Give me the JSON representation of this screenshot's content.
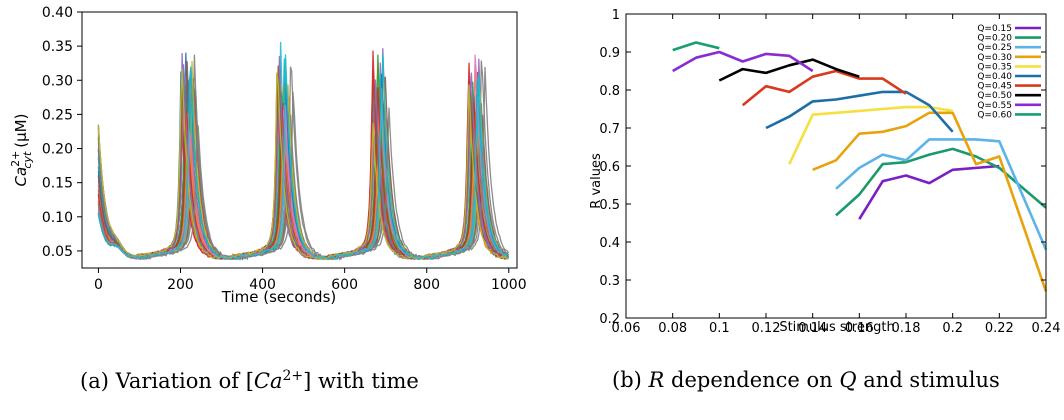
{
  "chart_data": [
    {
      "type": "line",
      "xlabel": "Time (seconds)",
      "ylabel_base": "Ca",
      "ylabel_sup": "2+",
      "ylabel_sub": "cyt",
      "ylabel_unit": "(μM)",
      "xlim": [
        -40,
        1020
      ],
      "ylim": [
        0.025,
        0.4
      ],
      "xticks": [
        0,
        200,
        400,
        600,
        800,
        1000
      ],
      "xtick_labels": [
        "0",
        "200",
        "400",
        "600",
        "800",
        "1000"
      ],
      "yticks": [
        0.05,
        0.1,
        0.15,
        0.2,
        0.25,
        0.3,
        0.35,
        0.4
      ],
      "ytick_labels": [
        "0.05",
        "0.10",
        "0.15",
        "0.20",
        "0.25",
        "0.30",
        "0.35",
        "0.40"
      ],
      "grid": false,
      "series_count": 40,
      "spike_times": [
        222,
        455,
        688,
        922
      ],
      "spike_peak_range": [
        0.26,
        0.38
      ],
      "baseline": 0.04,
      "initial_peak": 0.24,
      "colors": [
        "#1f77b4",
        "#ff7f0e",
        "#2ca02c",
        "#d62728",
        "#9467bd",
        "#8c564b",
        "#e377c2",
        "#7f7f7f",
        "#bcbd22",
        "#17becf"
      ],
      "caption_prefix": "(a) Variation of [",
      "caption_ca": "Ca",
      "caption_sup": "2+",
      "caption_suffix": "] with time"
    },
    {
      "type": "line",
      "xlabel": "Stimulus strength",
      "ylabel": "R values",
      "xlim": [
        0.06,
        0.24
      ],
      "ylim": [
        0.2,
        1.0
      ],
      "xticks": [
        0.06,
        0.08,
        0.1,
        0.12,
        0.14,
        0.16,
        0.18,
        0.2,
        0.22,
        0.24
      ],
      "xtick_labels": [
        "0.06",
        "0.08",
        "0.1",
        "0.12",
        "0.14",
        "0.16",
        "0.18",
        "0.2",
        "0.22",
        "0.24"
      ],
      "yticks": [
        0.2,
        0.3,
        0.4,
        0.5,
        0.6,
        0.7,
        0.8,
        0.9,
        1.0
      ],
      "ytick_labels": [
        "0.2",
        "0.3",
        "0.4",
        "0.5",
        "0.6",
        "0.7",
        "0.8",
        "0.9",
        "1"
      ],
      "grid": false,
      "legend_position": "top-right",
      "series": [
        {
          "name": "Q=0.15",
          "color": "#7b1fc4",
          "x": [
            0.16,
            0.17,
            0.18,
            0.19,
            0.2,
            0.22
          ],
          "y": [
            0.46,
            0.56,
            0.575,
            0.555,
            0.59,
            0.6
          ]
        },
        {
          "name": "Q=0.20",
          "color": "#1a9a6a",
          "x": [
            0.15,
            0.16,
            0.17,
            0.18,
            0.19,
            0.2,
            0.21,
            0.22,
            0.24
          ],
          "y": [
            0.47,
            0.525,
            0.605,
            0.61,
            0.63,
            0.645,
            0.625,
            0.595,
            0.49
          ]
        },
        {
          "name": "Q=0.25",
          "color": "#5ab4e8",
          "x": [
            0.15,
            0.16,
            0.17,
            0.18,
            0.19,
            0.2,
            0.21,
            0.22,
            0.24
          ],
          "y": [
            0.54,
            0.595,
            0.63,
            0.615,
            0.67,
            0.67,
            0.67,
            0.665,
            0.38
          ]
        },
        {
          "name": "Q=0.30",
          "color": "#e8a20c",
          "x": [
            0.14,
            0.15,
            0.16,
            0.17,
            0.18,
            0.19,
            0.2,
            0.21,
            0.22,
            0.24
          ],
          "y": [
            0.59,
            0.615,
            0.685,
            0.69,
            0.705,
            0.74,
            0.74,
            0.605,
            0.625,
            0.27
          ]
        },
        {
          "name": "Q=0.35",
          "color": "#f5e040",
          "x": [
            0.13,
            0.14,
            0.15,
            0.16,
            0.17,
            0.18,
            0.19,
            0.2
          ],
          "y": [
            0.605,
            0.735,
            0.74,
            0.745,
            0.75,
            0.755,
            0.755,
            0.745
          ]
        },
        {
          "name": "Q=0.40",
          "color": "#1d6ea8",
          "x": [
            0.12,
            0.13,
            0.14,
            0.15,
            0.16,
            0.17,
            0.18,
            0.19,
            0.2
          ],
          "y": [
            0.7,
            0.73,
            0.77,
            0.775,
            0.785,
            0.795,
            0.795,
            0.76,
            0.69
          ]
        },
        {
          "name": "Q=0.45",
          "color": "#d93a1e",
          "x": [
            0.11,
            0.12,
            0.13,
            0.14,
            0.15,
            0.16,
            0.17,
            0.18
          ],
          "y": [
            0.76,
            0.81,
            0.795,
            0.835,
            0.85,
            0.83,
            0.83,
            0.79
          ]
        },
        {
          "name": "Q=0.50",
          "color": "#000000",
          "x": [
            0.1,
            0.11,
            0.12,
            0.13,
            0.14,
            0.15,
            0.16
          ],
          "y": [
            0.825,
            0.855,
            0.845,
            0.865,
            0.88,
            0.855,
            0.835
          ]
        },
        {
          "name": "Q=0.55",
          "color": "#8a2bd1",
          "x": [
            0.08,
            0.09,
            0.1,
            0.11,
            0.12,
            0.13,
            0.14
          ],
          "y": [
            0.85,
            0.885,
            0.9,
            0.875,
            0.895,
            0.89,
            0.85
          ]
        },
        {
          "name": "Q=0.60",
          "color": "#17a06e",
          "x": [
            0.08,
            0.09,
            0.1
          ],
          "y": [
            0.905,
            0.925,
            0.91
          ]
        }
      ],
      "caption_prefix": "(b) ",
      "caption_R": "R",
      "caption_middle": " dependence on ",
      "caption_Q": "Q",
      "caption_suffix": " and stimulus"
    }
  ]
}
